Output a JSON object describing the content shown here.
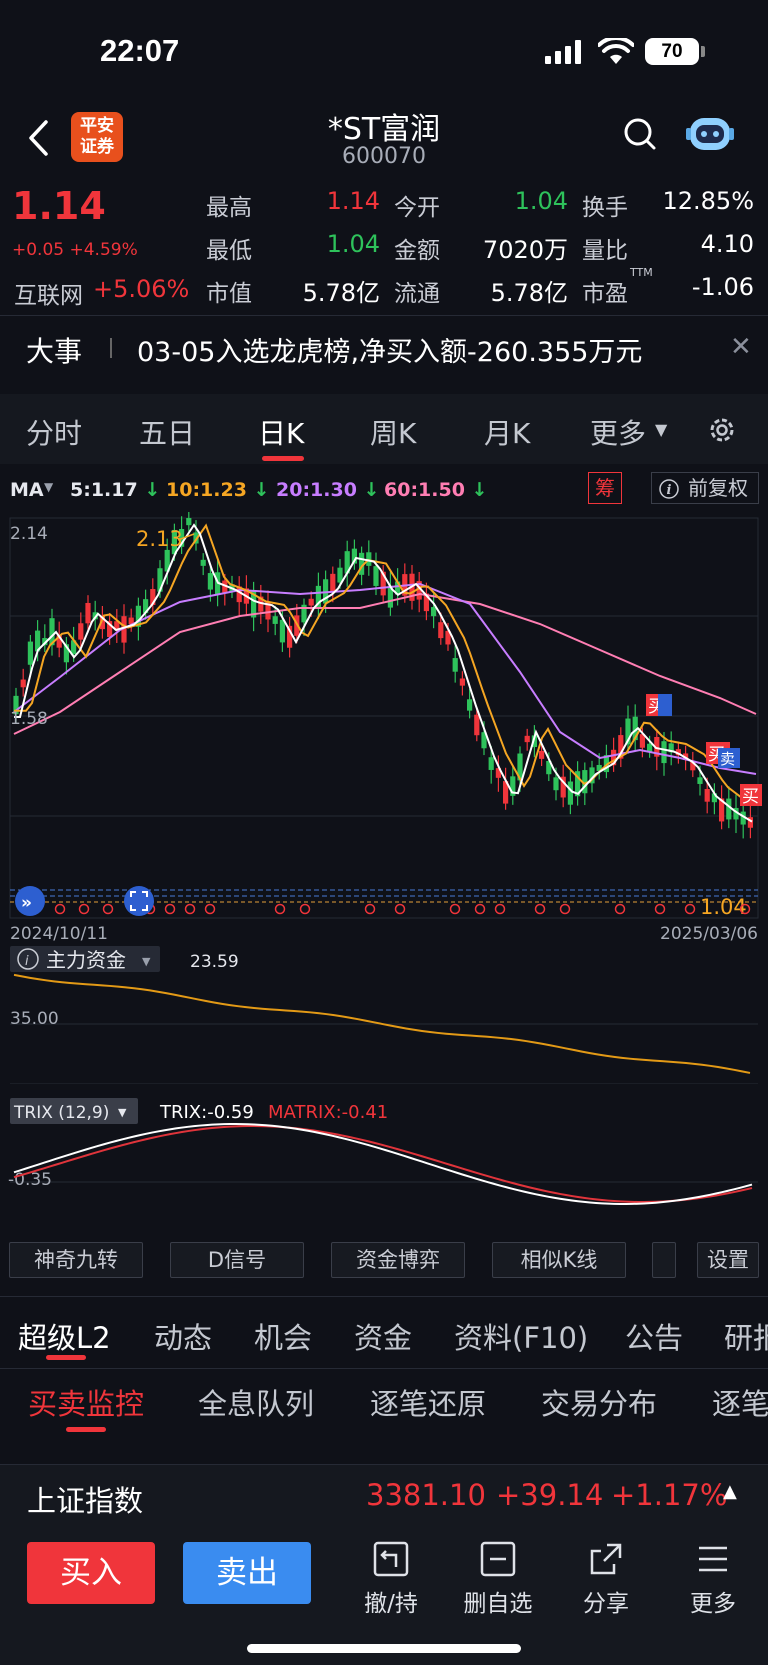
{
  "status_bar": {
    "time": "22:07",
    "battery": "70"
  },
  "header": {
    "title": "*ST富润",
    "code": "600070",
    "broker_logo": "平安证券"
  },
  "quote": {
    "price": "1.14",
    "change": "+0.05 +4.59%",
    "sector_name": "互联网",
    "sector_change": "+5.06%",
    "fields": [
      {
        "label": "最高",
        "value": "1.14",
        "color": "red"
      },
      {
        "label": "今开",
        "value": "1.04",
        "color": "green"
      },
      {
        "label": "换手",
        "value": "12.85%",
        "color": "white"
      },
      {
        "label": "最低",
        "value": "1.04",
        "color": "green"
      },
      {
        "label": "金额",
        "value": "7020万",
        "color": "white"
      },
      {
        "label": "量比",
        "value": "4.10",
        "color": "white"
      },
      {
        "label": "市值",
        "value": "5.78亿",
        "color": "white"
      },
      {
        "label": "流通",
        "value": "5.78亿",
        "color": "white"
      },
      {
        "label": "市盈",
        "value": "-1.06",
        "color": "white"
      }
    ],
    "pe_superscript": "TTM"
  },
  "news": {
    "tag": "大事",
    "text": "03-05入选龙虎榜,净买入额-260.355万元"
  },
  "chart_tabs": [
    "分时",
    "五日",
    "日K",
    "周K",
    "月K",
    "更多"
  ],
  "chart_active_tab": "日K",
  "ma": {
    "label": "MA",
    "items": [
      {
        "text": "5:1.17",
        "color": "#e6e8ee"
      },
      {
        "text": "10:1.23",
        "color": "#f5a623"
      },
      {
        "text": "20:1.30",
        "color": "#c77dff"
      },
      {
        "text": "60:1.50",
        "color": "#ff7eb3"
      }
    ],
    "chip_label": "筹",
    "adjust_label": "前复权"
  },
  "chart_data": {
    "type": "line",
    "kline": {
      "y_top_label": "2.14",
      "y_mid_label": "1.58",
      "high_annotation": "2.13",
      "low_annotation": "1.04",
      "date_start": "2024/10/11",
      "date_end": "2025/03/06",
      "markers": [
        "买",
        "卖",
        "买",
        "卖",
        "买"
      ]
    },
    "fund_flow": {
      "label": "主力资金",
      "value": "23.59",
      "axis_label": "35.00"
    },
    "trix": {
      "label": "TRIX (12,9)",
      "trix": "TRIX:-0.59",
      "matrix": "MATRIX:-0.41",
      "axis_label": "-0.35"
    }
  },
  "tool_buttons": [
    "神奇九转",
    "D信号",
    "资金博弈",
    "相似K线",
    "设置"
  ],
  "section_tabs": [
    "超级L2",
    "动态",
    "机会",
    "资金",
    "资料(F10)",
    "公告",
    "研报"
  ],
  "l2_tabs": [
    "买卖监控",
    "全息队列",
    "逐笔还原",
    "交易分布",
    "逐笔"
  ],
  "index_bar": {
    "name": "上证指数",
    "value": "3381.10",
    "change": "+39.14",
    "pct": "+1.17%"
  },
  "bottom": {
    "buy": "买入",
    "sell": "卖出",
    "tools": [
      "撤/持",
      "删自选",
      "分享",
      "更多"
    ]
  }
}
